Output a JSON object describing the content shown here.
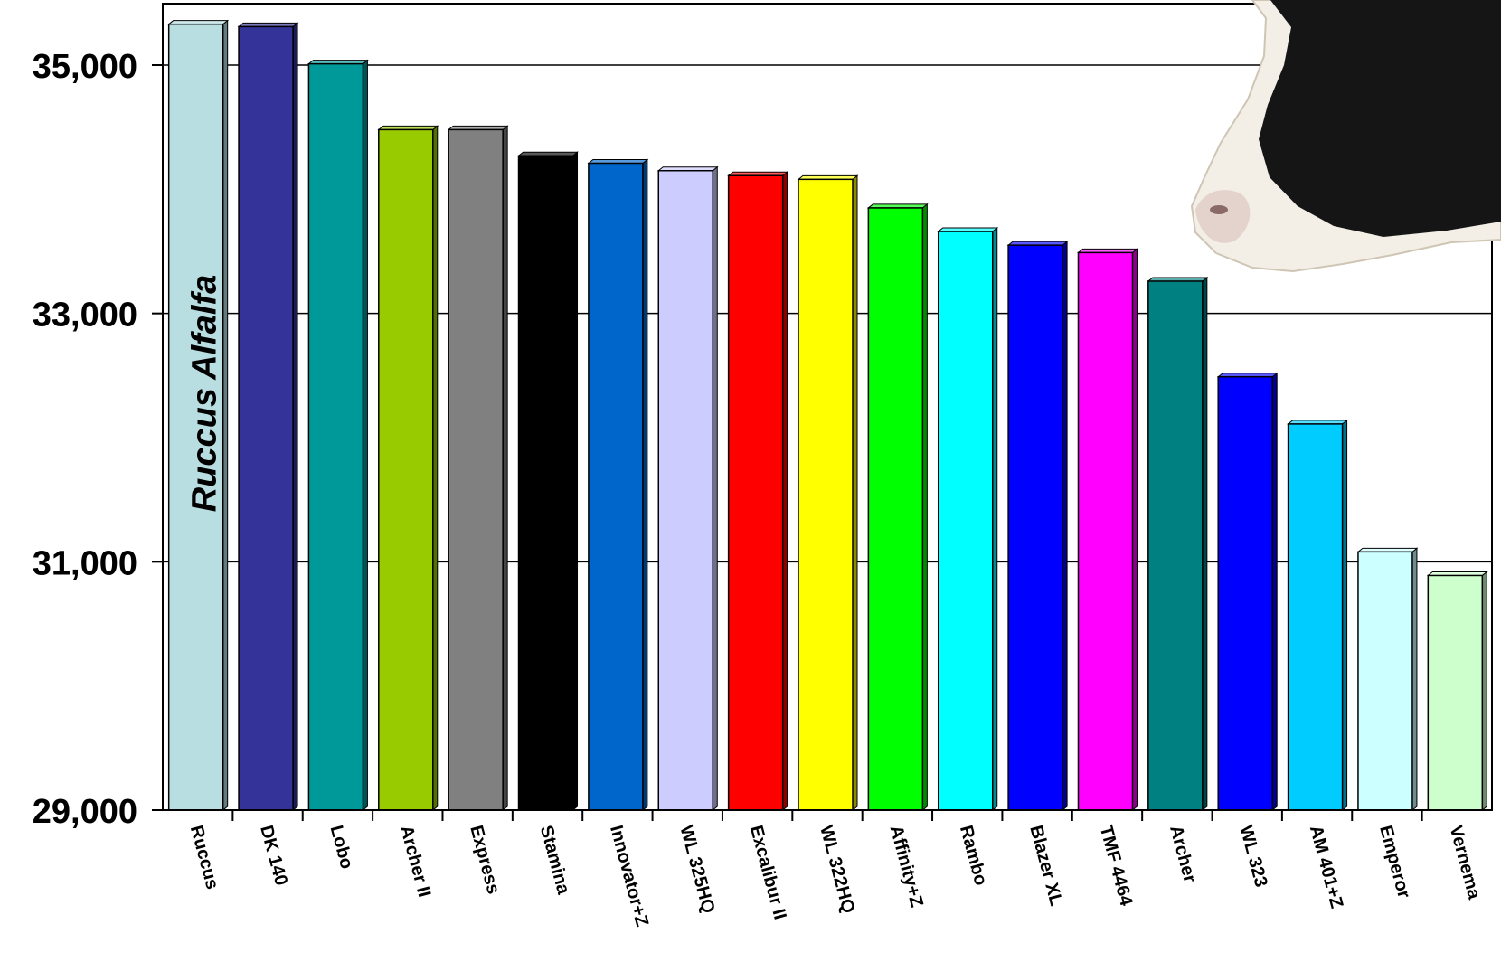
{
  "chart_data": {
    "type": "bar",
    "annotation": "Ruccus Alfalfa",
    "categories": [
      "Ruccus",
      "DK 140",
      "Lobo",
      "Archer II",
      "Express",
      "Stamina",
      "Innovator+Z",
      "WL 325HQ",
      "Excalibur II",
      "WL 322HQ",
      "Affinity+Z",
      "Rambo",
      "Blazer XL",
      "TMF 4464",
      "Archer",
      "WL 323",
      "AM 401+Z",
      "Emperor",
      "Vernema"
    ],
    "values": [
      35330,
      35310,
      35010,
      34480,
      34480,
      34270,
      34210,
      34150,
      34110,
      34080,
      33850,
      33660,
      33550,
      33490,
      33260,
      32490,
      32110,
      31080,
      30890
    ],
    "colors": [
      "#B8DEE2",
      "#333399",
      "#009999",
      "#99CC00",
      "#808080",
      "#000000",
      "#0066CC",
      "#CCCCFF",
      "#FF0000",
      "#FFFF00",
      "#00FF00",
      "#00FFFF",
      "#0000FF",
      "#FF00FF",
      "#008080",
      "#0000FF",
      "#00CCFF",
      "#CCFFFF",
      "#CCFFCC"
    ],
    "yticks": [
      "29,000",
      "31,000",
      "33,000",
      "35,000"
    ],
    "ytick_values": [
      29000,
      31000,
      33000,
      35000
    ],
    "ylim": [
      29000,
      35500
    ],
    "grid": true,
    "title": "",
    "xlabel": "",
    "ylabel": ""
  }
}
